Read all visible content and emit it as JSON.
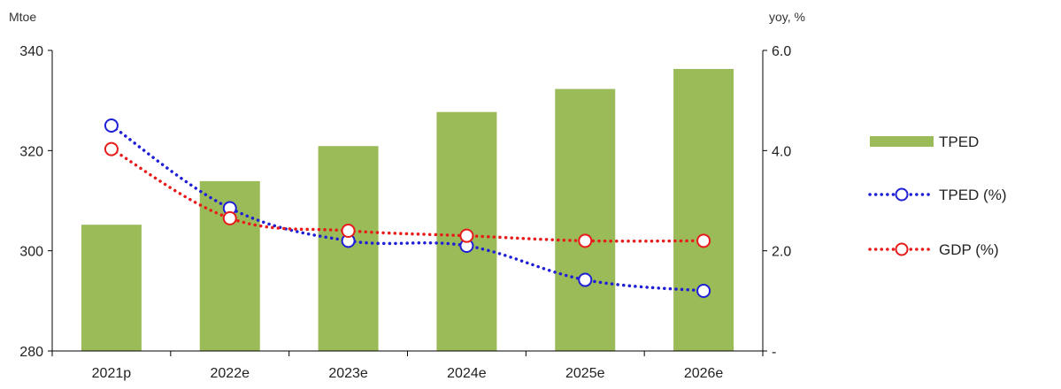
{
  "chart_data": {
    "type": "bar",
    "categories": [
      "2021p",
      "2022e",
      "2023e",
      "2024e",
      "2025e",
      "2026e"
    ],
    "left_axis": {
      "unit_label": "Mtoe",
      "ylim": [
        280,
        340
      ],
      "ticks": [
        "280",
        "300",
        "320",
        "340"
      ]
    },
    "right_axis": {
      "unit_label": "yoy, %",
      "ylim": [
        0,
        6
      ],
      "ticks": [
        "-",
        "2.0",
        "4.0",
        "6.0"
      ]
    },
    "series": [
      {
        "name": "TPED",
        "kind": "bar",
        "axis": "left",
        "color": "#9bbb59",
        "values": [
          305.2,
          313.9,
          320.9,
          327.7,
          332.3,
          336.3
        ]
      },
      {
        "name": "TPED (%)",
        "kind": "line",
        "axis": "right",
        "color": "#1f1fd6",
        "line_style": "dotted",
        "marker": "open-circle",
        "values": [
          4.5,
          2.85,
          2.2,
          2.1,
          1.42,
          1.2
        ]
      },
      {
        "name": "GDP (%)",
        "kind": "line",
        "axis": "right",
        "color": "#e81b1b",
        "line_style": "dotted",
        "marker": "open-circle",
        "values": [
          4.03,
          2.65,
          2.4,
          2.3,
          2.2,
          2.2
        ]
      }
    ],
    "grid": false,
    "legend": "right"
  }
}
